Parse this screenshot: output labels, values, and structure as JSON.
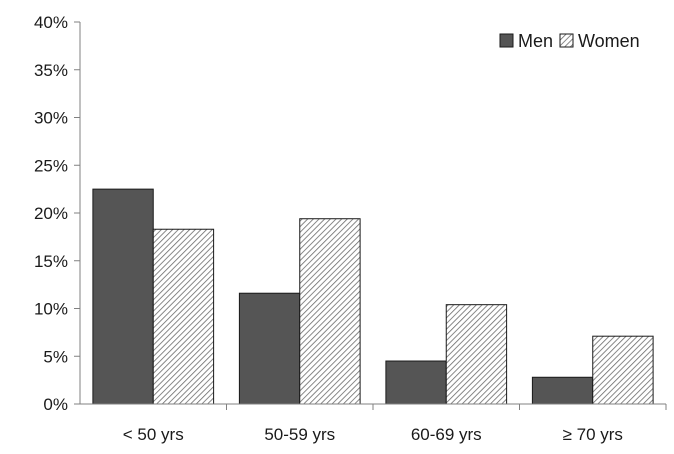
{
  "chart_data": {
    "type": "bar",
    "categories": [
      "< 50 yrs",
      "50-59 yrs",
      "60-69 yrs",
      "≥ 70 yrs"
    ],
    "series": [
      {
        "name": "Men",
        "values": [
          22.5,
          11.6,
          4.5,
          2.8
        ],
        "color": "#555555",
        "pattern": "solid"
      },
      {
        "name": "Women",
        "values": [
          18.3,
          19.4,
          10.4,
          7.1
        ],
        "color": "#ffffff",
        "pattern": "diagonal-hatch"
      }
    ],
    "title": "",
    "xlabel": "",
    "ylabel": "",
    "ylim": [
      0,
      40
    ],
    "yticks": [
      "0%",
      "5%",
      "10%",
      "15%",
      "20%",
      "25%",
      "30%",
      "35%",
      "40%"
    ],
    "ytick_values": [
      0,
      5,
      10,
      15,
      20,
      25,
      30,
      35,
      40
    ],
    "grid": false,
    "legend_position": "top-right"
  }
}
